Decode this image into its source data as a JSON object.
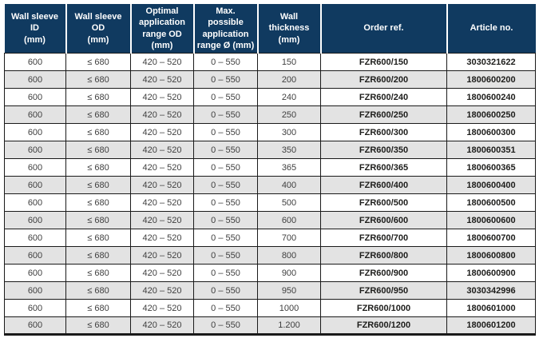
{
  "theme": {
    "header_bg": "#103A60",
    "header_text": "#FFFFFF",
    "row_bg": "#FFFFFF",
    "row_alt_bg": "#E3E3E3",
    "body_text": "#3F3F3F",
    "strong_text": "#1D1D1B",
    "border": "#1A1A1A"
  },
  "table": {
    "columns": [
      {
        "key": "wall-sleeve-id",
        "label": "Wall sleeve ID\n(mm)"
      },
      {
        "key": "wall-sleeve-od",
        "label": "Wall sleeve OD\n(mm)"
      },
      {
        "key": "optimal-application-range-od",
        "label": "Optimal\napplication\nrange OD\n(mm)"
      },
      {
        "key": "max-possible-application-range",
        "label": "Max. possible\napplication\nrange Ø (mm)"
      },
      {
        "key": "wall-thickness",
        "label": "Wall thickness\n(mm)"
      },
      {
        "key": "order-ref",
        "label": "Order ref."
      },
      {
        "key": "article-no",
        "label": "Article no."
      }
    ],
    "rows": [
      [
        "600",
        "≤ 680",
        "420 – 520",
        "0 – 550",
        "150",
        "FZR600/150",
        "3030321622"
      ],
      [
        "600",
        "≤ 680",
        "420 – 520",
        "0 – 550",
        "200",
        "FZR600/200",
        "1800600200"
      ],
      [
        "600",
        "≤ 680",
        "420 – 520",
        "0 – 550",
        "240",
        "FZR600/240",
        "1800600240"
      ],
      [
        "600",
        "≤ 680",
        "420 – 520",
        "0 – 550",
        "250",
        "FZR600/250",
        "1800600250"
      ],
      [
        "600",
        "≤ 680",
        "420 – 520",
        "0 – 550",
        "300",
        "FZR600/300",
        "1800600300"
      ],
      [
        "600",
        "≤ 680",
        "420 – 520",
        "0 – 550",
        "350",
        "FZR600/350",
        "1800600351"
      ],
      [
        "600",
        "≤ 680",
        "420 – 520",
        "0 – 550",
        "365",
        "FZR600/365",
        "1800600365"
      ],
      [
        "600",
        "≤ 680",
        "420 – 520",
        "0 – 550",
        "400",
        "FZR600/400",
        "1800600400"
      ],
      [
        "600",
        "≤ 680",
        "420 – 520",
        "0 – 550",
        "500",
        "FZR600/500",
        "1800600500"
      ],
      [
        "600",
        "≤ 680",
        "420 – 520",
        "0 – 550",
        "600",
        "FZR600/600",
        "1800600600"
      ],
      [
        "600",
        "≤ 680",
        "420 – 520",
        "0 – 550",
        "700",
        "FZR600/700",
        "1800600700"
      ],
      [
        "600",
        "≤ 680",
        "420 – 520",
        "0 – 550",
        "800",
        "FZR600/800",
        "1800600800"
      ],
      [
        "600",
        "≤ 680",
        "420 – 520",
        "0 – 550",
        "900",
        "FZR600/900",
        "1800600900"
      ],
      [
        "600",
        "≤ 680",
        "420 – 520",
        "0 – 550",
        "950",
        "FZR600/950",
        "3030342996"
      ],
      [
        "600",
        "≤ 680",
        "420 – 520",
        "0 – 550",
        "1000",
        "FZR600/1000",
        "1800601000"
      ],
      [
        "600",
        "≤ 680",
        "420 – 520",
        "0 – 550",
        "1.200",
        "FZR600/1200",
        "1800601200"
      ]
    ]
  }
}
